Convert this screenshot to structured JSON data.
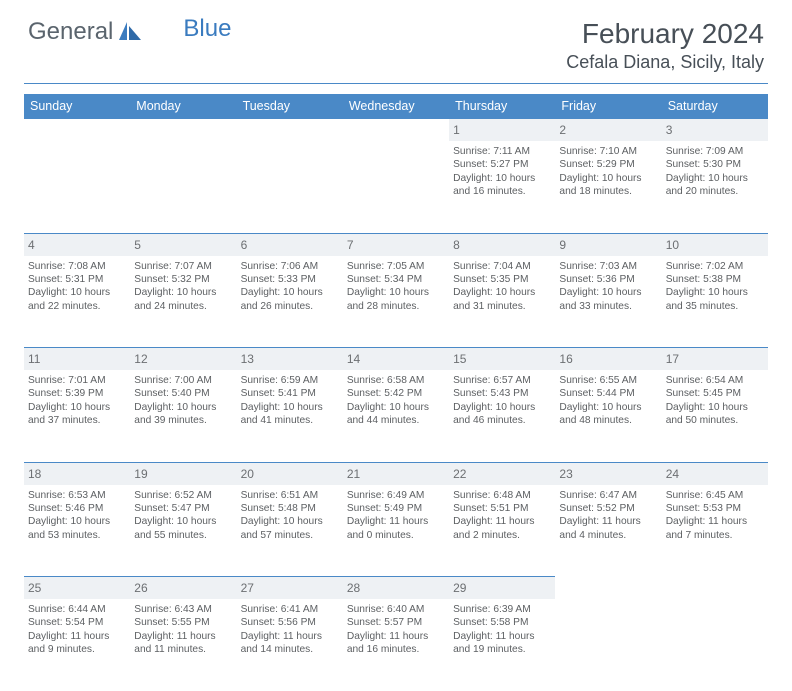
{
  "brand": {
    "general": "General",
    "blue": "Blue"
  },
  "title": "February 2024",
  "location": "Cefala Diana, Sicily, Italy",
  "colors": {
    "header_bg": "#4a89c7",
    "header_text": "#ffffff",
    "divider": "#4a89c7",
    "daynum_row_bg": "#eef1f4",
    "text": "#5c5f62",
    "title_text": "#474f57"
  },
  "days_of_week": [
    "Sunday",
    "Monday",
    "Tuesday",
    "Wednesday",
    "Thursday",
    "Friday",
    "Saturday"
  ],
  "first_weekday_index": 4,
  "days": [
    {
      "n": 1,
      "sunrise": "7:11 AM",
      "sunset": "5:27 PM",
      "daylight": "10 hours and 16 minutes."
    },
    {
      "n": 2,
      "sunrise": "7:10 AM",
      "sunset": "5:29 PM",
      "daylight": "10 hours and 18 minutes."
    },
    {
      "n": 3,
      "sunrise": "7:09 AM",
      "sunset": "5:30 PM",
      "daylight": "10 hours and 20 minutes."
    },
    {
      "n": 4,
      "sunrise": "7:08 AM",
      "sunset": "5:31 PM",
      "daylight": "10 hours and 22 minutes."
    },
    {
      "n": 5,
      "sunrise": "7:07 AM",
      "sunset": "5:32 PM",
      "daylight": "10 hours and 24 minutes."
    },
    {
      "n": 6,
      "sunrise": "7:06 AM",
      "sunset": "5:33 PM",
      "daylight": "10 hours and 26 minutes."
    },
    {
      "n": 7,
      "sunrise": "7:05 AM",
      "sunset": "5:34 PM",
      "daylight": "10 hours and 28 minutes."
    },
    {
      "n": 8,
      "sunrise": "7:04 AM",
      "sunset": "5:35 PM",
      "daylight": "10 hours and 31 minutes."
    },
    {
      "n": 9,
      "sunrise": "7:03 AM",
      "sunset": "5:36 PM",
      "daylight": "10 hours and 33 minutes."
    },
    {
      "n": 10,
      "sunrise": "7:02 AM",
      "sunset": "5:38 PM",
      "daylight": "10 hours and 35 minutes."
    },
    {
      "n": 11,
      "sunrise": "7:01 AM",
      "sunset": "5:39 PM",
      "daylight": "10 hours and 37 minutes."
    },
    {
      "n": 12,
      "sunrise": "7:00 AM",
      "sunset": "5:40 PM",
      "daylight": "10 hours and 39 minutes."
    },
    {
      "n": 13,
      "sunrise": "6:59 AM",
      "sunset": "5:41 PM",
      "daylight": "10 hours and 41 minutes."
    },
    {
      "n": 14,
      "sunrise": "6:58 AM",
      "sunset": "5:42 PM",
      "daylight": "10 hours and 44 minutes."
    },
    {
      "n": 15,
      "sunrise": "6:57 AM",
      "sunset": "5:43 PM",
      "daylight": "10 hours and 46 minutes."
    },
    {
      "n": 16,
      "sunrise": "6:55 AM",
      "sunset": "5:44 PM",
      "daylight": "10 hours and 48 minutes."
    },
    {
      "n": 17,
      "sunrise": "6:54 AM",
      "sunset": "5:45 PM",
      "daylight": "10 hours and 50 minutes."
    },
    {
      "n": 18,
      "sunrise": "6:53 AM",
      "sunset": "5:46 PM",
      "daylight": "10 hours and 53 minutes."
    },
    {
      "n": 19,
      "sunrise": "6:52 AM",
      "sunset": "5:47 PM",
      "daylight": "10 hours and 55 minutes."
    },
    {
      "n": 20,
      "sunrise": "6:51 AM",
      "sunset": "5:48 PM",
      "daylight": "10 hours and 57 minutes."
    },
    {
      "n": 21,
      "sunrise": "6:49 AM",
      "sunset": "5:49 PM",
      "daylight": "11 hours and 0 minutes."
    },
    {
      "n": 22,
      "sunrise": "6:48 AM",
      "sunset": "5:51 PM",
      "daylight": "11 hours and 2 minutes."
    },
    {
      "n": 23,
      "sunrise": "6:47 AM",
      "sunset": "5:52 PM",
      "daylight": "11 hours and 4 minutes."
    },
    {
      "n": 24,
      "sunrise": "6:45 AM",
      "sunset": "5:53 PM",
      "daylight": "11 hours and 7 minutes."
    },
    {
      "n": 25,
      "sunrise": "6:44 AM",
      "sunset": "5:54 PM",
      "daylight": "11 hours and 9 minutes."
    },
    {
      "n": 26,
      "sunrise": "6:43 AM",
      "sunset": "5:55 PM",
      "daylight": "11 hours and 11 minutes."
    },
    {
      "n": 27,
      "sunrise": "6:41 AM",
      "sunset": "5:56 PM",
      "daylight": "11 hours and 14 minutes."
    },
    {
      "n": 28,
      "sunrise": "6:40 AM",
      "sunset": "5:57 PM",
      "daylight": "11 hours and 16 minutes."
    },
    {
      "n": 29,
      "sunrise": "6:39 AM",
      "sunset": "5:58 PM",
      "daylight": "11 hours and 19 minutes."
    }
  ],
  "labels": {
    "sunrise": "Sunrise:",
    "sunset": "Sunset:",
    "daylight": "Daylight:"
  }
}
